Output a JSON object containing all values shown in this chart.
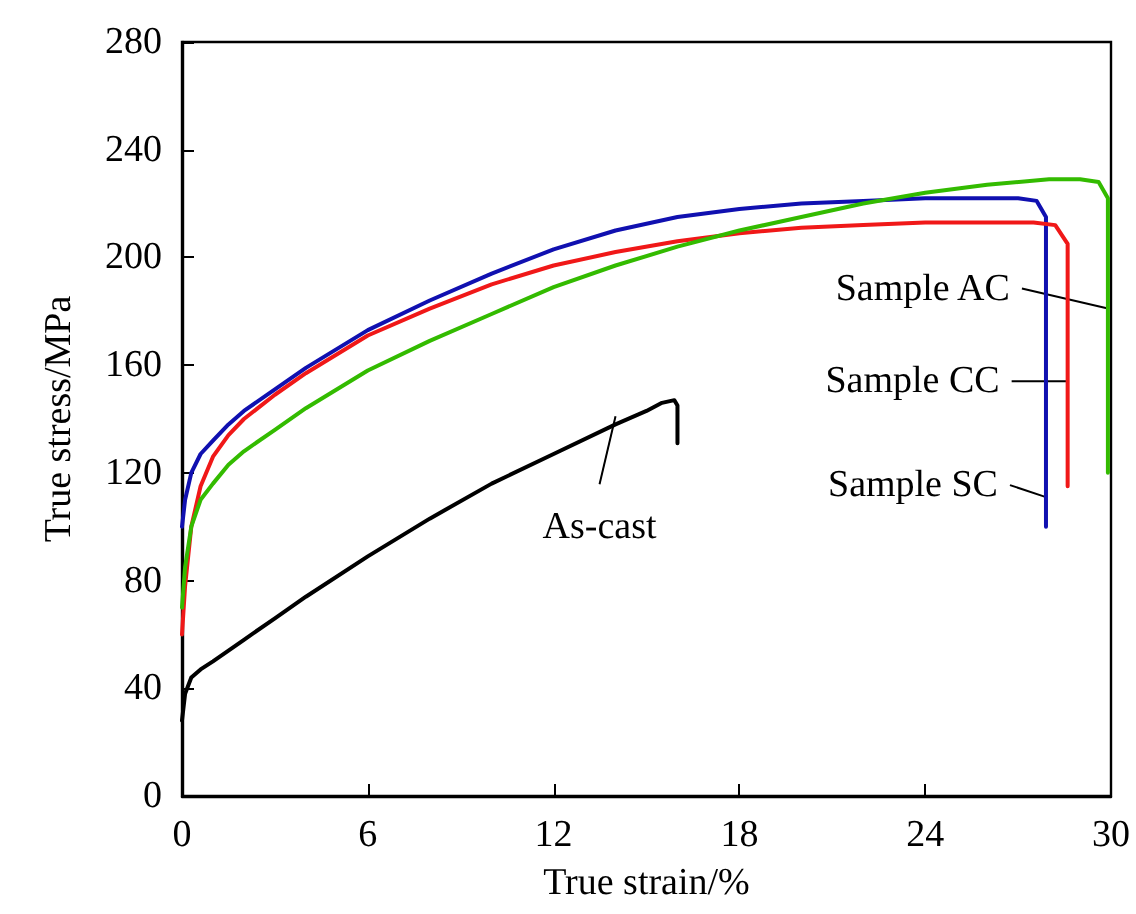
{
  "chart_data": {
    "type": "line",
    "xlabel": "True strain/%",
    "ylabel": "True stress/MPa",
    "xlim": [
      0,
      30
    ],
    "xticks": [
      0,
      6,
      12,
      18,
      24,
      30
    ],
    "ylim": [
      0,
      280
    ],
    "yticks": [
      0,
      40,
      80,
      120,
      160,
      200,
      240,
      280
    ],
    "grid": false,
    "marker": "none",
    "line_style": "solid",
    "series": [
      {
        "color": "#000000",
        "x": [
          0,
          0.1,
          0.3,
          0.6,
          1,
          2,
          3,
          4,
          6,
          8,
          10,
          12,
          14,
          15,
          15.5,
          15.9,
          16,
          16
        ],
        "values": [
          28,
          38,
          44,
          47,
          50,
          58,
          66,
          74,
          89,
          103,
          116,
          127,
          138,
          143,
          146,
          147,
          145,
          131
        ]
      },
      {
        "color": "#1010b0",
        "x": [
          0,
          0.1,
          0.3,
          0.6,
          1,
          1.5,
          2,
          3,
          4,
          6,
          8,
          10,
          12,
          14,
          16,
          18,
          20,
          22,
          24,
          26,
          27,
          27.6,
          27.9,
          27.9
        ],
        "values": [
          100,
          110,
          120,
          127,
          132,
          138,
          143,
          151,
          159,
          173,
          184,
          194,
          203,
          210,
          215,
          218,
          220,
          221,
          222,
          222,
          222,
          221,
          215,
          100
        ]
      },
      {
        "color": "#f01818",
        "x": [
          0,
          0.1,
          0.3,
          0.6,
          1,
          1.5,
          2,
          3,
          4,
          6,
          8,
          10,
          12,
          14,
          16,
          18,
          20,
          22,
          24,
          26,
          27.5,
          28.2,
          28.6,
          28.6
        ],
        "values": [
          60,
          78,
          100,
          115,
          126,
          134,
          140,
          149,
          157,
          171,
          181,
          190,
          197,
          202,
          206,
          209,
          211,
          212,
          213,
          213,
          213,
          212,
          205,
          115
        ]
      },
      {
        "color": "#33bb00",
        "x": [
          0,
          0.1,
          0.3,
          0.6,
          1,
          1.5,
          2,
          3,
          4,
          6,
          8,
          10,
          12,
          14,
          16,
          18,
          20,
          22,
          24,
          26,
          28,
          29,
          29.6,
          29.9,
          29.9
        ],
        "values": [
          70,
          85,
          100,
          110,
          116,
          123,
          128,
          136,
          144,
          158,
          169,
          179,
          189,
          197,
          204,
          210,
          215,
          220,
          224,
          227,
          229,
          229,
          228,
          222,
          120
        ]
      }
    ],
    "annotations": [
      {
        "text": "Sample AC",
        "x": 29.9,
        "y": 181
      },
      {
        "text": "Sample CC",
        "x": 28.6,
        "y": 154
      },
      {
        "text": "Sample SC",
        "x": 27.9,
        "y": 111
      },
      {
        "text": "As-cast",
        "x": 14,
        "y": 141
      }
    ]
  }
}
